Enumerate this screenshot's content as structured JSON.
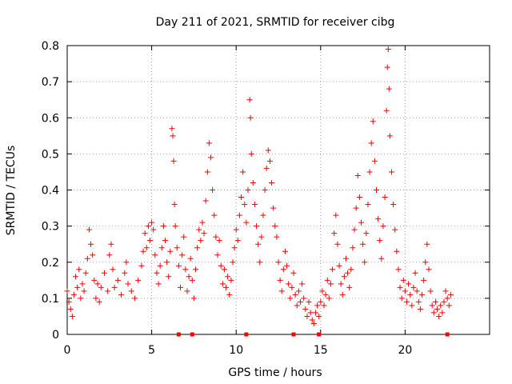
{
  "chart_data": {
    "type": "scatter",
    "title": "Day 211 of 2021, SRMTID for receiver cibg",
    "xlabel": "GPS time / hours",
    "ylabel": "SRMTID / TECUs",
    "xlim": [
      0,
      25
    ],
    "ylim": [
      0,
      0.8
    ],
    "x_ticks": [
      "0",
      "5",
      "10",
      "15",
      "20"
    ],
    "y_ticks": [
      "0",
      "0.1",
      "0.2",
      "0.3",
      "0.4",
      "0.5",
      "0.6",
      "0.7",
      "0.8"
    ],
    "grid": true,
    "marker": "+",
    "color": "#ff0000",
    "series": [
      {
        "name": "SRMTID",
        "points": [
          [
            0.0,
            0.12
          ],
          [
            0.1,
            0.09
          ],
          [
            0.2,
            0.07
          ],
          [
            0.3,
            0.05
          ],
          [
            0.4,
            0.11
          ],
          [
            0.5,
            0.16
          ],
          [
            0.6,
            0.13
          ],
          [
            0.7,
            0.18
          ],
          [
            0.8,
            0.1
          ],
          [
            0.9,
            0.14
          ],
          [
            1.0,
            0.12
          ],
          [
            1.1,
            0.17
          ],
          [
            1.2,
            0.21
          ],
          [
            1.3,
            0.29
          ],
          [
            1.4,
            0.25
          ],
          [
            1.5,
            0.22
          ],
          [
            1.6,
            0.15
          ],
          [
            1.7,
            0.1
          ],
          [
            1.8,
            0.14
          ],
          [
            1.9,
            0.09
          ],
          [
            2.0,
            0.13
          ],
          [
            2.2,
            0.17
          ],
          [
            2.4,
            0.12
          ],
          [
            2.5,
            0.22
          ],
          [
            2.6,
            0.25
          ],
          [
            2.7,
            0.18
          ],
          [
            2.8,
            0.13
          ],
          [
            3.0,
            0.15
          ],
          [
            3.2,
            0.11
          ],
          [
            3.4,
            0.17
          ],
          [
            3.5,
            0.2
          ],
          [
            3.6,
            0.14
          ],
          [
            3.8,
            0.12
          ],
          [
            4.0,
            0.1
          ],
          [
            4.2,
            0.15
          ],
          [
            4.4,
            0.19
          ],
          [
            4.5,
            0.23
          ],
          [
            4.6,
            0.28
          ],
          [
            4.7,
            0.24
          ],
          [
            4.8,
            0.3
          ],
          [
            4.9,
            0.26
          ],
          [
            5.0,
            0.31
          ],
          [
            5.1,
            0.29
          ],
          [
            5.2,
            0.22
          ],
          [
            5.3,
            0.17
          ],
          [
            5.4,
            0.14
          ],
          [
            5.5,
            0.19
          ],
          [
            5.6,
            0.24
          ],
          [
            5.7,
            0.3
          ],
          [
            5.8,
            0.26
          ],
          [
            5.9,
            0.2
          ],
          [
            6.0,
            0.16
          ],
          [
            6.1,
            0.23
          ],
          [
            6.2,
            0.57
          ],
          [
            6.25,
            0.55
          ],
          [
            6.3,
            0.48
          ],
          [
            6.35,
            0.36
          ],
          [
            6.4,
            0.3
          ],
          [
            6.5,
            0.24
          ],
          [
            6.6,
            0.19
          ],
          [
            6.7,
            0.13
          ],
          [
            6.8,
            0.22
          ],
          [
            6.9,
            0.27
          ],
          [
            7.0,
            0.18
          ],
          [
            7.1,
            0.12
          ],
          [
            7.2,
            0.16
          ],
          [
            7.3,
            0.21
          ],
          [
            7.4,
            0.15
          ],
          [
            7.5,
            0.1
          ],
          [
            7.6,
            0.18
          ],
          [
            7.7,
            0.24
          ],
          [
            7.8,
            0.29
          ],
          [
            7.9,
            0.26
          ],
          [
            8.0,
            0.31
          ],
          [
            8.1,
            0.28
          ],
          [
            8.2,
            0.37
          ],
          [
            8.3,
            0.45
          ],
          [
            8.4,
            0.53
          ],
          [
            8.5,
            0.49
          ],
          [
            8.6,
            0.4
          ],
          [
            8.7,
            0.33
          ],
          [
            8.8,
            0.27
          ],
          [
            8.9,
            0.22
          ],
          [
            9.0,
            0.26
          ],
          [
            9.1,
            0.19
          ],
          [
            9.2,
            0.14
          ],
          [
            9.3,
            0.18
          ],
          [
            9.4,
            0.13
          ],
          [
            9.5,
            0.16
          ],
          [
            9.6,
            0.11
          ],
          [
            9.7,
            0.15
          ],
          [
            9.8,
            0.2
          ],
          [
            9.9,
            0.24
          ],
          [
            10.0,
            0.29
          ],
          [
            10.1,
            0.26
          ],
          [
            10.2,
            0.33
          ],
          [
            10.3,
            0.38
          ],
          [
            10.4,
            0.45
          ],
          [
            10.5,
            0.36
          ],
          [
            10.6,
            0.31
          ],
          [
            10.7,
            0.4
          ],
          [
            10.8,
            0.65
          ],
          [
            10.85,
            0.6
          ],
          [
            10.9,
            0.5
          ],
          [
            11.0,
            0.42
          ],
          [
            11.1,
            0.36
          ],
          [
            11.2,
            0.3
          ],
          [
            11.3,
            0.25
          ],
          [
            11.4,
            0.2
          ],
          [
            11.5,
            0.27
          ],
          [
            11.6,
            0.33
          ],
          [
            11.7,
            0.4
          ],
          [
            11.8,
            0.46
          ],
          [
            11.9,
            0.51
          ],
          [
            12.0,
            0.48
          ],
          [
            12.1,
            0.42
          ],
          [
            12.2,
            0.35
          ],
          [
            12.3,
            0.3
          ],
          [
            12.4,
            0.27
          ],
          [
            12.5,
            0.2
          ],
          [
            12.6,
            0.15
          ],
          [
            12.7,
            0.12
          ],
          [
            12.8,
            0.18
          ],
          [
            12.9,
            0.23
          ],
          [
            13.0,
            0.19
          ],
          [
            13.1,
            0.14
          ],
          [
            13.2,
            0.1
          ],
          [
            13.3,
            0.13
          ],
          [
            13.4,
            0.17
          ],
          [
            13.5,
            0.11
          ],
          [
            13.6,
            0.08
          ],
          [
            13.7,
            0.12
          ],
          [
            13.8,
            0.09
          ],
          [
            13.9,
            0.14
          ],
          [
            14.0,
            0.1
          ],
          [
            14.1,
            0.07
          ],
          [
            14.2,
            0.05
          ],
          [
            14.3,
            0.09
          ],
          [
            14.4,
            0.06
          ],
          [
            14.5,
            0.04
          ],
          [
            14.6,
            0.03
          ],
          [
            14.7,
            0.06
          ],
          [
            14.8,
            0.08
          ],
          [
            14.9,
            0.05
          ],
          [
            15.0,
            0.09
          ],
          [
            15.1,
            0.12
          ],
          [
            15.2,
            0.08
          ],
          [
            15.3,
            0.11
          ],
          [
            15.4,
            0.15
          ],
          [
            15.5,
            0.1
          ],
          [
            15.6,
            0.14
          ],
          [
            15.7,
            0.18
          ],
          [
            15.8,
            0.28
          ],
          [
            15.9,
            0.33
          ],
          [
            16.0,
            0.25
          ],
          [
            16.1,
            0.19
          ],
          [
            16.2,
            0.14
          ],
          [
            16.3,
            0.11
          ],
          [
            16.4,
            0.16
          ],
          [
            16.5,
            0.21
          ],
          [
            16.6,
            0.17
          ],
          [
            16.7,
            0.13
          ],
          [
            16.8,
            0.18
          ],
          [
            16.9,
            0.24
          ],
          [
            17.0,
            0.29
          ],
          [
            17.1,
            0.35
          ],
          [
            17.2,
            0.44
          ],
          [
            17.3,
            0.38
          ],
          [
            17.4,
            0.31
          ],
          [
            17.5,
            0.25
          ],
          [
            17.6,
            0.2
          ],
          [
            17.7,
            0.28
          ],
          [
            17.8,
            0.36
          ],
          [
            17.9,
            0.45
          ],
          [
            18.0,
            0.53
          ],
          [
            18.1,
            0.59
          ],
          [
            18.2,
            0.48
          ],
          [
            18.3,
            0.4
          ],
          [
            18.4,
            0.32
          ],
          [
            18.5,
            0.26
          ],
          [
            18.6,
            0.21
          ],
          [
            18.7,
            0.3
          ],
          [
            18.8,
            0.38
          ],
          [
            18.9,
            0.62
          ],
          [
            18.95,
            0.74
          ],
          [
            19.0,
            0.79
          ],
          [
            19.05,
            0.68
          ],
          [
            19.1,
            0.55
          ],
          [
            19.2,
            0.45
          ],
          [
            19.3,
            0.36
          ],
          [
            19.4,
            0.29
          ],
          [
            19.5,
            0.23
          ],
          [
            19.6,
            0.18
          ],
          [
            19.7,
            0.13
          ],
          [
            19.8,
            0.1
          ],
          [
            19.9,
            0.15
          ],
          [
            20.0,
            0.12
          ],
          [
            20.1,
            0.09
          ],
          [
            20.2,
            0.14
          ],
          [
            20.3,
            0.11
          ],
          [
            20.4,
            0.08
          ],
          [
            20.5,
            0.13
          ],
          [
            20.6,
            0.17
          ],
          [
            20.7,
            0.12
          ],
          [
            20.8,
            0.09
          ],
          [
            20.9,
            0.07
          ],
          [
            21.0,
            0.11
          ],
          [
            21.1,
            0.15
          ],
          [
            21.2,
            0.2
          ],
          [
            21.3,
            0.25
          ],
          [
            21.4,
            0.18
          ],
          [
            21.5,
            0.12
          ],
          [
            21.6,
            0.08
          ],
          [
            21.7,
            0.06
          ],
          [
            21.8,
            0.09
          ],
          [
            21.9,
            0.07
          ],
          [
            22.0,
            0.05
          ],
          [
            22.1,
            0.08
          ],
          [
            22.2,
            0.06
          ],
          [
            22.3,
            0.09
          ],
          [
            22.4,
            0.12
          ],
          [
            22.5,
            0.1
          ],
          [
            22.6,
            0.08
          ],
          [
            22.7,
            0.11
          ]
        ]
      }
    ],
    "gap_markers_x": [
      6.6,
      7.4,
      10.6,
      13.4,
      14.9,
      22.5
    ]
  }
}
